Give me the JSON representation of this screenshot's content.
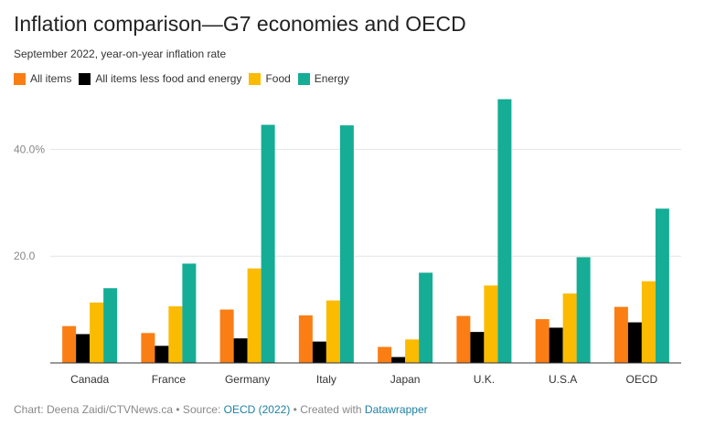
{
  "header": {
    "title": "Inflation comparison—G7 economies and OECD",
    "subtitle": "September 2022, year-on-year inflation rate"
  },
  "footer": {
    "prefix": "Chart: Deena Zaidi/CTVNews.ca • Source: ",
    "source_link": "OECD (2022)",
    "middle": " • Created with ",
    "tool_link": "Datawrapper"
  },
  "colors": {
    "all_items": "#fa7e14",
    "core": "#000000",
    "food": "#fbbb00",
    "energy": "#15ad95"
  },
  "chart_data": {
    "type": "bar",
    "categories": [
      "Canada",
      "France",
      "Germany",
      "Italy",
      "Japan",
      "U.K.",
      "U.S.A",
      "OECD"
    ],
    "series": [
      {
        "name": "All items",
        "color": "#fa7e14",
        "values": [
          6.9,
          5.6,
          10.0,
          8.9,
          3.0,
          8.8,
          8.2,
          10.5
        ]
      },
      {
        "name": "All items less food and energy",
        "color": "#000000",
        "values": [
          5.4,
          3.2,
          4.6,
          4.0,
          1.1,
          5.8,
          6.6,
          7.6
        ]
      },
      {
        "name": "Food",
        "color": "#fbbb00",
        "values": [
          11.3,
          10.6,
          17.7,
          11.7,
          4.4,
          14.5,
          13.0,
          15.3
        ]
      },
      {
        "name": "Energy",
        "color": "#15ad95",
        "values": [
          14.0,
          18.6,
          44.6,
          44.5,
          16.9,
          49.4,
          19.8,
          28.9
        ]
      }
    ],
    "ylim": [
      0,
      50
    ],
    "yticks": [
      {
        "value": 20,
        "label": "20.0"
      },
      {
        "value": 40,
        "label": "40.0%"
      }
    ],
    "grid": true,
    "legend_position": "top-left",
    "title": "Inflation comparison—G7 economies and OECD",
    "subtitle": "September 2022, year-on-year inflation rate",
    "xlabel": "",
    "ylabel": ""
  }
}
